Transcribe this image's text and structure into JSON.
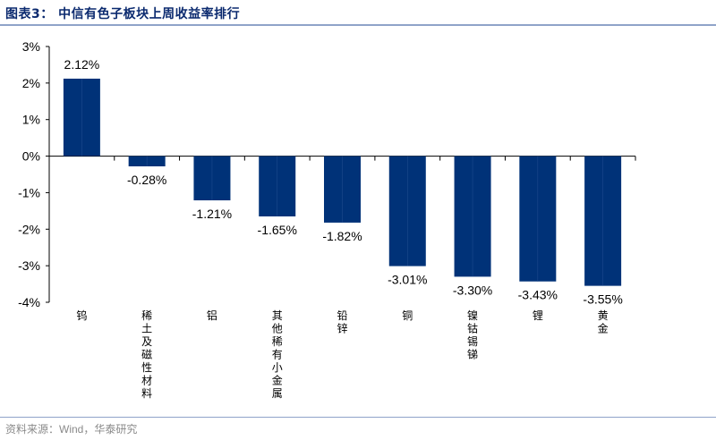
{
  "header": {
    "title": "图表3：  中信有色子板块上周收益率排行"
  },
  "footer": {
    "source": "资料来源：Wind，华泰研究"
  },
  "colors": {
    "bar": "#003278",
    "rule": "#8fa3c9",
    "title": "#0b2a6f"
  },
  "chart_data": {
    "type": "bar",
    "title": "",
    "xlabel": "",
    "ylabel": "",
    "ylim": [
      -4,
      3
    ],
    "yticks": [
      3,
      2,
      1,
      0,
      -1,
      -2,
      -3,
      -4
    ],
    "ytick_labels": [
      "3%",
      "2%",
      "1%",
      "0%",
      "-1%",
      "-2%",
      "-3%",
      "-4%"
    ],
    "categories": [
      "钨",
      "稀土及磁性材料",
      "铝",
      "其他稀有小金属",
      "铅锌",
      "铜",
      "镍钴锡锑",
      "锂",
      "黄金"
    ],
    "values": [
      2.12,
      -0.28,
      -1.21,
      -1.65,
      -1.82,
      -3.01,
      -3.3,
      -3.43,
      -3.55
    ],
    "data_labels": [
      "2.12%",
      "-0.28%",
      "-1.21%",
      "-1.65%",
      "-1.82%",
      "-3.01%",
      "-3.30%",
      "-3.43%",
      "-3.55%"
    ],
    "grid": false,
    "legend": "none"
  }
}
